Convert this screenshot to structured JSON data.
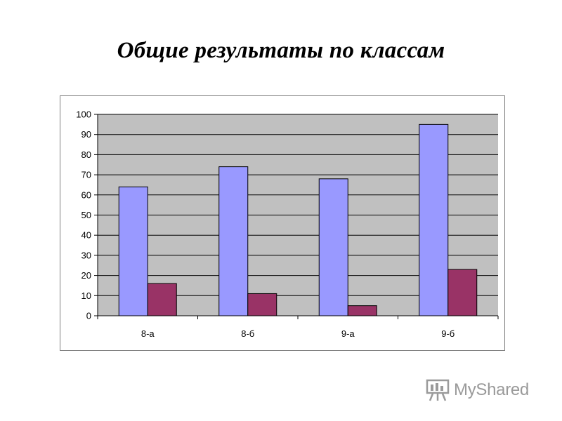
{
  "slide": {
    "title": "Общие результаты по классам"
  },
  "chart_data": {
    "type": "bar",
    "categories": [
      "8-а",
      "8-б",
      "9-а",
      "9-б"
    ],
    "series": [
      {
        "values": [
          64,
          74,
          68,
          95
        ],
        "color": "#9999ff"
      },
      {
        "values": [
          16,
          11,
          5,
          23
        ],
        "color": "#993366"
      }
    ],
    "ylim": [
      0,
      100
    ],
    "yticks": [
      0,
      10,
      20,
      30,
      40,
      50,
      60,
      70,
      80,
      90,
      100
    ],
    "grid": true,
    "plot_background": "#c0c0c0",
    "legend": "none"
  },
  "watermark": {
    "text": "MyShared",
    "icon": "presentation-board-icon"
  }
}
